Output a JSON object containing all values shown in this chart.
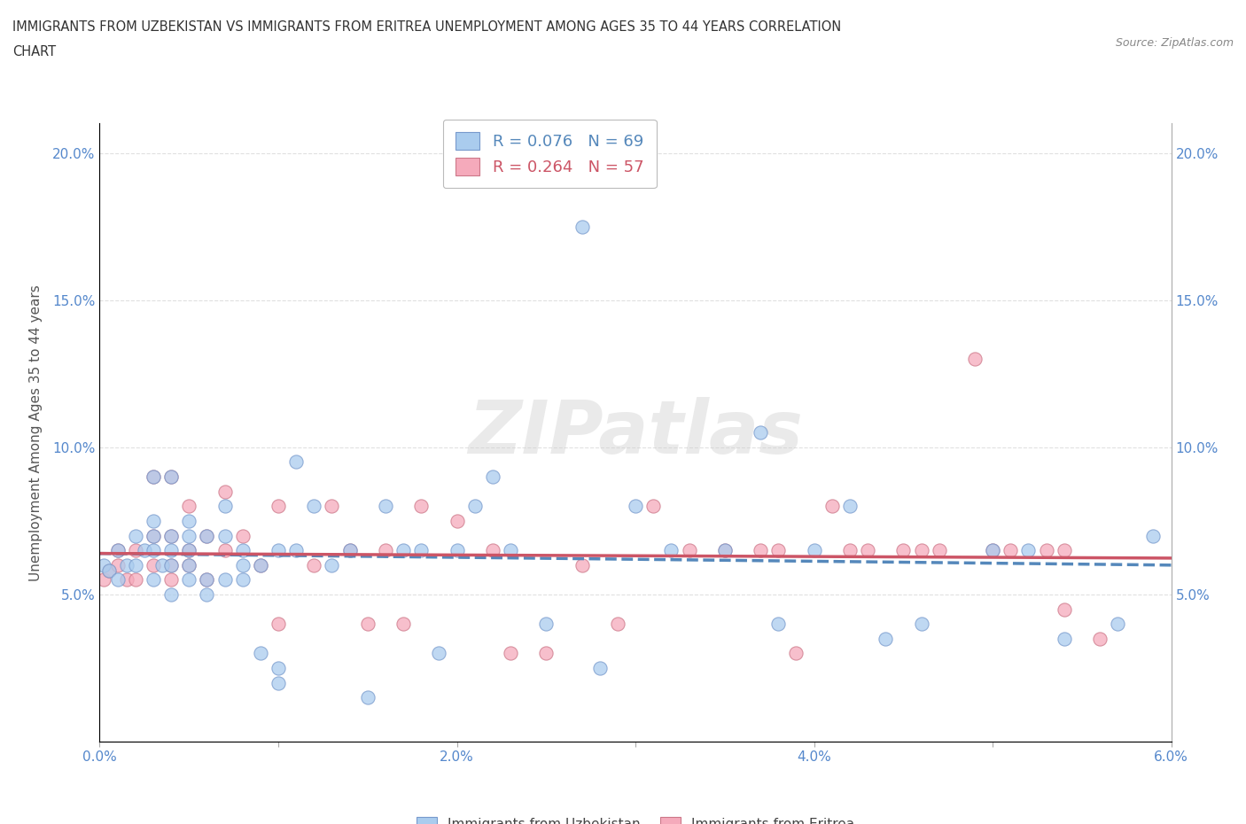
{
  "title_line1": "IMMIGRANTS FROM UZBEKISTAN VS IMMIGRANTS FROM ERITREA UNEMPLOYMENT AMONG AGES 35 TO 44 YEARS CORRELATION",
  "title_line2": "CHART",
  "source": "Source: ZipAtlas.com",
  "ylabel": "Unemployment Among Ages 35 to 44 years",
  "xlim": [
    0.0,
    0.06
  ],
  "ylim": [
    0.0,
    0.21
  ],
  "xticks": [
    0.0,
    0.01,
    0.02,
    0.03,
    0.04,
    0.05,
    0.06
  ],
  "xticklabels": [
    "0.0%",
    "",
    "2.0%",
    "",
    "4.0%",
    "",
    "6.0%"
  ],
  "yticks": [
    0.0,
    0.05,
    0.1,
    0.15,
    0.2
  ],
  "yticklabels": [
    "",
    "5.0%",
    "10.0%",
    "15.0%",
    "20.0%"
  ],
  "R_uzbekistan": 0.076,
  "N_uzbekistan": 69,
  "R_eritrea": 0.264,
  "N_eritrea": 57,
  "color_uzbekistan": "#aaccee",
  "color_eritrea": "#f5aabb",
  "edge_color_uzbekistan": "#7799cc",
  "edge_color_eritrea": "#cc7788",
  "line_color_uzbekistan": "#5588bb",
  "line_color_eritrea": "#cc5566",
  "watermark": "ZIPatlas",
  "background_color": "#ffffff",
  "grid_color": "#dddddd",
  "uzbekistan_x": [
    0.0002,
    0.0005,
    0.001,
    0.001,
    0.0015,
    0.002,
    0.002,
    0.0025,
    0.003,
    0.003,
    0.003,
    0.003,
    0.003,
    0.0035,
    0.004,
    0.004,
    0.004,
    0.004,
    0.004,
    0.005,
    0.005,
    0.005,
    0.005,
    0.005,
    0.006,
    0.006,
    0.006,
    0.007,
    0.007,
    0.007,
    0.008,
    0.008,
    0.008,
    0.009,
    0.009,
    0.01,
    0.01,
    0.01,
    0.011,
    0.011,
    0.012,
    0.013,
    0.014,
    0.015,
    0.016,
    0.017,
    0.018,
    0.019,
    0.02,
    0.021,
    0.022,
    0.023,
    0.025,
    0.027,
    0.028,
    0.03,
    0.032,
    0.035,
    0.037,
    0.038,
    0.04,
    0.042,
    0.044,
    0.046,
    0.05,
    0.052,
    0.054,
    0.057,
    0.059
  ],
  "uzbekistan_y": [
    0.06,
    0.058,
    0.055,
    0.065,
    0.06,
    0.06,
    0.07,
    0.065,
    0.055,
    0.065,
    0.07,
    0.075,
    0.09,
    0.06,
    0.05,
    0.06,
    0.065,
    0.07,
    0.09,
    0.055,
    0.06,
    0.065,
    0.07,
    0.075,
    0.05,
    0.055,
    0.07,
    0.055,
    0.07,
    0.08,
    0.055,
    0.06,
    0.065,
    0.03,
    0.06,
    0.02,
    0.025,
    0.065,
    0.065,
    0.095,
    0.08,
    0.06,
    0.065,
    0.015,
    0.08,
    0.065,
    0.065,
    0.03,
    0.065,
    0.08,
    0.09,
    0.065,
    0.04,
    0.175,
    0.025,
    0.08,
    0.065,
    0.065,
    0.105,
    0.04,
    0.065,
    0.08,
    0.035,
    0.04,
    0.065,
    0.065,
    0.035,
    0.04,
    0.07
  ],
  "eritrea_x": [
    0.0002,
    0.0005,
    0.001,
    0.001,
    0.0015,
    0.002,
    0.002,
    0.003,
    0.003,
    0.003,
    0.004,
    0.004,
    0.004,
    0.004,
    0.005,
    0.005,
    0.005,
    0.006,
    0.006,
    0.007,
    0.007,
    0.008,
    0.009,
    0.01,
    0.01,
    0.012,
    0.013,
    0.014,
    0.015,
    0.016,
    0.017,
    0.018,
    0.02,
    0.022,
    0.023,
    0.025,
    0.027,
    0.029,
    0.031,
    0.033,
    0.035,
    0.037,
    0.039,
    0.041,
    0.043,
    0.045,
    0.047,
    0.049,
    0.051,
    0.053,
    0.054,
    0.056,
    0.038,
    0.042,
    0.046,
    0.05,
    0.054
  ],
  "eritrea_y": [
    0.055,
    0.058,
    0.06,
    0.065,
    0.055,
    0.055,
    0.065,
    0.06,
    0.07,
    0.09,
    0.055,
    0.06,
    0.07,
    0.09,
    0.06,
    0.065,
    0.08,
    0.055,
    0.07,
    0.065,
    0.085,
    0.07,
    0.06,
    0.04,
    0.08,
    0.06,
    0.08,
    0.065,
    0.04,
    0.065,
    0.04,
    0.08,
    0.075,
    0.065,
    0.03,
    0.03,
    0.06,
    0.04,
    0.08,
    0.065,
    0.065,
    0.065,
    0.03,
    0.08,
    0.065,
    0.065,
    0.065,
    0.13,
    0.065,
    0.065,
    0.045,
    0.035,
    0.065,
    0.065,
    0.065,
    0.065,
    0.065
  ],
  "tick_color": "#5588cc",
  "ylabel_color": "#555555"
}
